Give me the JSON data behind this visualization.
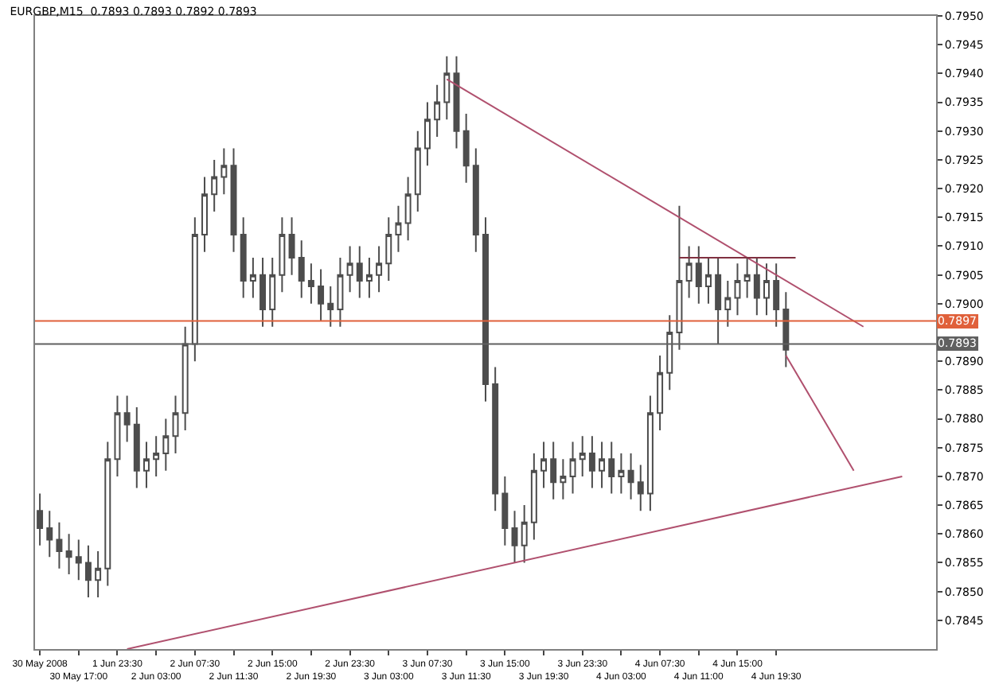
{
  "chart_data": {
    "type": "candlestick",
    "title": "EURGBP,M15  0.7893 0.7893 0.7892 0.7893",
    "categories": [
      "30 May 2008",
      null,
      null,
      null,
      "30 May 17:00",
      null,
      null,
      null,
      "1 Jun 23:30",
      null,
      null,
      null,
      "2 Jun 03:00",
      null,
      null,
      null,
      "2 Jun 07:30",
      null,
      null,
      null,
      "2 Jun 11:30",
      null,
      null,
      null,
      "2 Jun 15:00",
      null,
      null,
      null,
      "2 Jun 19:30",
      null,
      null,
      null,
      "2 Jun 23:30",
      null,
      null,
      null,
      "3 Jun 03:00",
      null,
      null,
      null,
      "3 Jun 07:30",
      null,
      null,
      null,
      "3 Jun 11:30",
      null,
      null,
      null,
      "3 Jun 15:00",
      null,
      null,
      null,
      "3 Jun 19:30",
      null,
      null,
      null,
      "3 Jun 23:30",
      null,
      null,
      null,
      "4 Jun 03:00",
      null,
      null,
      null,
      "4 Jun 07:30",
      null,
      null,
      null,
      "4 Jun 11:00",
      null,
      null,
      null,
      "4 Jun 15:00",
      null,
      null,
      null,
      "4 Jun 19:30",
      null,
      null,
      null,
      null,
      null,
      null,
      null,
      null,
      null,
      null,
      null,
      null,
      null,
      null,
      null,
      null
    ],
    "ylim": [
      0.784,
      0.795
    ],
    "yticks": [
      {
        "value": 0.7845,
        "label": "0.7845"
      },
      {
        "value": 0.785,
        "label": "0.7850"
      },
      {
        "value": 0.7855,
        "label": "0.7855"
      },
      {
        "value": 0.786,
        "label": "0.7860"
      },
      {
        "value": 0.7865,
        "label": "0.7865"
      },
      {
        "value": 0.787,
        "label": "0.7870"
      },
      {
        "value": 0.7875,
        "label": "0.7875"
      },
      {
        "value": 0.788,
        "label": "0.7880"
      },
      {
        "value": 0.7885,
        "label": "0.7885"
      },
      {
        "value": 0.789,
        "label": "0.7890"
      },
      {
        "value": 0.79,
        "label": "0.7900"
      },
      {
        "value": 0.7905,
        "label": "0.7905"
      },
      {
        "value": 0.791,
        "label": "0.7910"
      },
      {
        "value": 0.7915,
        "label": "0.7915"
      },
      {
        "value": 0.792,
        "label": "0.7920"
      },
      {
        "value": 0.7925,
        "label": "0.7925"
      },
      {
        "value": 0.793,
        "label": "0.7930"
      },
      {
        "value": 0.7935,
        "label": "0.7935"
      },
      {
        "value": 0.794,
        "label": "0.7940"
      },
      {
        "value": 0.7945,
        "label": "0.7945"
      },
      {
        "value": 0.795,
        "label": "0.7950"
      }
    ],
    "series": [
      {
        "color": "#4d4d4d",
        "ohlc": [
          [
            0.7864,
            0.7867,
            0.7858,
            0.7861
          ],
          [
            0.7861,
            0.7864,
            0.7856,
            0.7859
          ],
          [
            0.7859,
            0.7862,
            0.7854,
            0.7857
          ],
          [
            0.7857,
            0.786,
            0.7853,
            0.7856
          ],
          [
            0.7856,
            0.7859,
            0.7852,
            0.7855
          ],
          [
            0.7855,
            0.7858,
            0.7849,
            0.7852
          ],
          [
            0.7852,
            0.7857,
            0.7849,
            0.7854
          ],
          [
            0.7854,
            0.7876,
            0.7851,
            0.7873
          ],
          [
            0.7873,
            0.7884,
            0.787,
            0.7881
          ],
          [
            0.7881,
            0.7884,
            0.7876,
            0.7879
          ],
          [
            0.7879,
            0.7882,
            0.7868,
            0.7871
          ],
          [
            0.7871,
            0.7876,
            0.7868,
            0.7873
          ],
          [
            0.7873,
            0.7877,
            0.787,
            0.7874
          ],
          [
            0.7874,
            0.788,
            0.7871,
            0.7877
          ],
          [
            0.7877,
            0.7884,
            0.7874,
            0.7881
          ],
          [
            0.7881,
            0.7896,
            0.7878,
            0.7893
          ],
          [
            0.7893,
            0.7915,
            0.789,
            0.7912
          ],
          [
            0.7912,
            0.7922,
            0.7909,
            0.7919
          ],
          [
            0.7919,
            0.7925,
            0.7916,
            0.7922
          ],
          [
            0.7922,
            0.7927,
            0.7919,
            0.7924
          ],
          [
            0.7924,
            0.7927,
            0.7909,
            0.7912
          ],
          [
            0.7912,
            0.7915,
            0.7901,
            0.7904
          ],
          [
            0.7904,
            0.7908,
            0.7901,
            0.7905
          ],
          [
            0.7905,
            0.7908,
            0.7896,
            0.7899
          ],
          [
            0.7899,
            0.7908,
            0.7896,
            0.7905
          ],
          [
            0.7905,
            0.7915,
            0.7902,
            0.7912
          ],
          [
            0.7912,
            0.7915,
            0.7905,
            0.7908
          ],
          [
            0.7908,
            0.7911,
            0.7901,
            0.7904
          ],
          [
            0.7904,
            0.7907,
            0.79,
            0.7903
          ],
          [
            0.7903,
            0.7906,
            0.7897,
            0.79
          ],
          [
            0.79,
            0.7903,
            0.7896,
            0.7899
          ],
          [
            0.7899,
            0.7908,
            0.7896,
            0.7905
          ],
          [
            0.7905,
            0.791,
            0.7902,
            0.7907
          ],
          [
            0.7907,
            0.791,
            0.7901,
            0.7904
          ],
          [
            0.7904,
            0.7908,
            0.7901,
            0.7905
          ],
          [
            0.7905,
            0.791,
            0.7902,
            0.7907
          ],
          [
            0.7907,
            0.7915,
            0.7904,
            0.7912
          ],
          [
            0.7912,
            0.7917,
            0.7909,
            0.7914
          ],
          [
            0.7914,
            0.7922,
            0.7911,
            0.7919
          ],
          [
            0.7919,
            0.793,
            0.7916,
            0.7927
          ],
          [
            0.7927,
            0.7935,
            0.7924,
            0.7932
          ],
          [
            0.7932,
            0.7938,
            0.7929,
            0.7935
          ],
          [
            0.7935,
            0.7943,
            0.7932,
            0.794
          ],
          [
            0.794,
            0.7943,
            0.7927,
            0.793
          ],
          [
            0.793,
            0.7933,
            0.7921,
            0.7924
          ],
          [
            0.7924,
            0.7927,
            0.7909,
            0.7912
          ],
          [
            0.7912,
            0.7915,
            0.7883,
            0.7886
          ],
          [
            0.7886,
            0.7889,
            0.7864,
            0.7867
          ],
          [
            0.7867,
            0.787,
            0.7858,
            0.7861
          ],
          [
            0.7861,
            0.7864,
            0.7855,
            0.7858
          ],
          [
            0.7858,
            0.7865,
            0.7855,
            0.7862
          ],
          [
            0.7862,
            0.7874,
            0.7859,
            0.7871
          ],
          [
            0.7871,
            0.7876,
            0.7868,
            0.7873
          ],
          [
            0.7873,
            0.7876,
            0.7866,
            0.7869
          ],
          [
            0.7869,
            0.7873,
            0.7866,
            0.787
          ],
          [
            0.787,
            0.7876,
            0.7867,
            0.7873
          ],
          [
            0.7873,
            0.7877,
            0.787,
            0.7874
          ],
          [
            0.7874,
            0.7877,
            0.7868,
            0.7871
          ],
          [
            0.7871,
            0.7876,
            0.7868,
            0.7873
          ],
          [
            0.7873,
            0.7876,
            0.7867,
            0.787
          ],
          [
            0.787,
            0.7874,
            0.7867,
            0.7871
          ],
          [
            0.7871,
            0.7874,
            0.7866,
            0.7869
          ],
          [
            0.7869,
            0.7872,
            0.7864,
            0.7867
          ],
          [
            0.7867,
            0.7884,
            0.7864,
            0.7881
          ],
          [
            0.7881,
            0.7891,
            0.7878,
            0.7888
          ],
          [
            0.7888,
            0.7898,
            0.7885,
            0.7895
          ],
          [
            0.7895,
            0.7917,
            0.7892,
            0.7904
          ],
          [
            0.7904,
            0.791,
            0.7901,
            0.7907
          ],
          [
            0.7907,
            0.791,
            0.79,
            0.7903
          ],
          [
            0.7903,
            0.7908,
            0.79,
            0.7905
          ],
          [
            0.7905,
            0.7908,
            0.7893,
            0.7899
          ],
          [
            0.7899,
            0.7904,
            0.7896,
            0.7901
          ],
          [
            0.7901,
            0.7907,
            0.7898,
            0.7904
          ],
          [
            0.7904,
            0.7908,
            0.7901,
            0.7905
          ],
          [
            0.7905,
            0.7908,
            0.7898,
            0.7901
          ],
          [
            0.7901,
            0.7907,
            0.7898,
            0.7904
          ],
          [
            0.7904,
            0.7907,
            0.7896,
            0.7899
          ],
          [
            0.7899,
            0.7902,
            0.7889,
            0.7892
          ],
          null,
          null,
          null,
          null,
          null,
          null,
          null,
          null,
          null,
          null,
          null,
          null,
          null,
          null,
          null
        ]
      },
      {
        "type": "line",
        "color": "#b0506e",
        "values": [
          null,
          null,
          null,
          null,
          null,
          null,
          null,
          null,
          null,
          null,
          null,
          null,
          null,
          null,
          null,
          null,
          null,
          null,
          null,
          null,
          null,
          null,
          null,
          null,
          null,
          null,
          null,
          null,
          null,
          null,
          null,
          null,
          null,
          null,
          null,
          null,
          null,
          null,
          null,
          null,
          null,
          null,
          0.7939,
          null,
          null,
          null,
          null,
          null,
          null,
          null,
          null,
          null,
          null,
          null,
          null,
          null,
          null,
          null,
          null,
          null,
          null,
          null,
          null,
          null,
          null,
          null,
          null,
          null,
          null,
          null,
          null,
          null,
          null,
          null,
          null,
          null,
          null,
          null,
          null,
          null,
          null,
          null,
          null,
          null,
          null,
          0.7896,
          null,
          null,
          null,
          null,
          null,
          null,
          null
        ]
      },
      {
        "type": "line",
        "color": "#b0506e",
        "values": [
          null,
          null,
          null,
          null,
          null,
          null,
          null,
          null,
          null,
          0.784,
          null,
          null,
          null,
          null,
          null,
          null,
          null,
          null,
          null,
          null,
          null,
          null,
          null,
          null,
          null,
          null,
          null,
          null,
          null,
          null,
          null,
          null,
          null,
          null,
          null,
          null,
          null,
          null,
          null,
          null,
          null,
          null,
          null,
          null,
          null,
          null,
          null,
          null,
          null,
          null,
          null,
          null,
          null,
          null,
          null,
          null,
          null,
          null,
          null,
          null,
          null,
          null,
          null,
          null,
          null,
          null,
          null,
          null,
          null,
          null,
          null,
          null,
          null,
          null,
          null,
          null,
          null,
          null,
          null,
          null,
          null,
          null,
          null,
          null,
          null,
          null,
          null,
          null,
          null,
          0.787,
          null,
          null,
          null
        ]
      },
      {
        "type": "line",
        "color": "#b0506e",
        "values": [
          null,
          null,
          null,
          null,
          null,
          null,
          null,
          null,
          null,
          null,
          null,
          null,
          null,
          null,
          null,
          null,
          null,
          null,
          null,
          null,
          null,
          null,
          null,
          null,
          null,
          null,
          null,
          null,
          null,
          null,
          null,
          null,
          null,
          null,
          null,
          null,
          null,
          null,
          null,
          null,
          null,
          null,
          null,
          null,
          null,
          null,
          null,
          null,
          null,
          null,
          null,
          null,
          null,
          null,
          null,
          null,
          null,
          null,
          null,
          null,
          null,
          null,
          null,
          null,
          null,
          null,
          null,
          null,
          null,
          null,
          null,
          null,
          null,
          null,
          null,
          null,
          null,
          0.7891,
          null,
          null,
          null,
          null,
          null,
          null,
          0.7871,
          null,
          null,
          null,
          null,
          null,
          null,
          null,
          null
        ]
      },
      {
        "type": "line",
        "color": "#803040",
        "values": [
          null,
          null,
          null,
          null,
          null,
          null,
          null,
          null,
          null,
          null,
          null,
          null,
          null,
          null,
          null,
          null,
          null,
          null,
          null,
          null,
          null,
          null,
          null,
          null,
          null,
          null,
          null,
          null,
          null,
          null,
          null,
          null,
          null,
          null,
          null,
          null,
          null,
          null,
          null,
          null,
          null,
          null,
          null,
          null,
          null,
          null,
          null,
          null,
          null,
          null,
          null,
          null,
          null,
          null,
          null,
          null,
          null,
          null,
          null,
          null,
          null,
          null,
          null,
          null,
          null,
          null,
          0.7908,
          null,
          null,
          null,
          null,
          null,
          null,
          null,
          null,
          null,
          null,
          null,
          0.7908,
          null,
          null,
          null,
          null,
          null,
          null,
          null,
          null,
          null,
          null,
          null,
          null,
          null,
          null
        ]
      }
    ],
    "ref_lines": [
      {
        "axis": "y",
        "value": 0.7897,
        "label": "0.7897",
        "color": "#e0603a"
      },
      {
        "axis": "y",
        "value": 0.7893,
        "label": "0.7893",
        "color": "#606060"
      }
    ],
    "tick_labels": true
  }
}
